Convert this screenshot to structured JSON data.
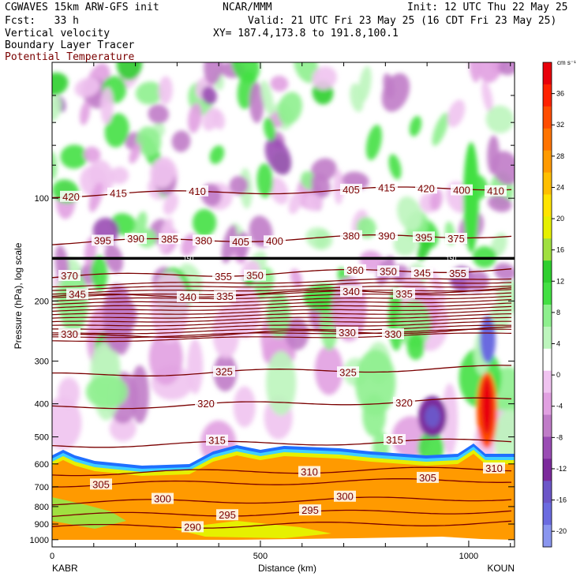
{
  "header": {
    "model": "CGWAVES 15km ARW-GFS init",
    "org": "NCAR/MMM",
    "init": "Init: 12 UTC Thu 22 May 25",
    "fcst": "Fcst:   33 h",
    "valid": "Valid: 21 UTC Fri 23 May 25 (16 CDT Fri 23 May 25)",
    "field1": "Vertical velocity",
    "xy": "XY= 187.4,173.8 to 191.8,100.1",
    "field2": "Boundary Layer Tracer",
    "field3": "Potential Temperature"
  },
  "colors": {
    "theta_line": "#7a0000",
    "theta_label": "#7a0000",
    "tropopause": "#000000"
  },
  "chart_data": {
    "type": "heatmap",
    "xlabel": "Distance (km)",
    "ylabel": "Pressure (hPa), log scale",
    "xlim": [
      0,
      1110
    ],
    "xticks": [
      "0",
      "500",
      "1000"
    ],
    "left_station": "KABR",
    "right_station": "KOUN",
    "y_scale": "log",
    "yticks": [
      "100",
      "200",
      "300",
      "400",
      "500",
      "600",
      "700",
      "800",
      "900",
      "1000"
    ],
    "colorbar": {
      "units": "cm s⁻¹",
      "ticks": [
        "36",
        "32",
        "28",
        "24",
        "20",
        "16",
        "12",
        "8",
        "4",
        "0",
        "-4",
        "-8",
        "-12",
        "-16",
        "-20"
      ],
      "colors": [
        "#e8000a",
        "#ff2200",
        "#ff4d00",
        "#ff7400",
        "#ff9a00",
        "#ffbf00",
        "#ffe400",
        "#e6f000",
        "#a0e040",
        "#2fcf2f",
        "#43e043",
        "#8ef08e",
        "#bdf5bd",
        "#ffffff",
        "#f0c3f0",
        "#e1a0e1",
        "#c07cc8",
        "#9a4cb4",
        "#7c2a9c",
        "#6c56c8",
        "#6b6be0",
        "#8a96ef"
      ]
    },
    "tropopause_label": "150",
    "theta_contours": [
      {
        "label": "420",
        "p": 98,
        "labels": [
          [
            "420",
            90
          ],
          [
            "415",
            150
          ],
          [
            "410",
            250
          ],
          [
            "405",
            445
          ],
          [
            "415",
            490
          ],
          [
            "420",
            540
          ],
          [
            "400",
            585
          ],
          [
            "410",
            628
          ]
        ]
      },
      {
        "label": "395",
        "p": 135,
        "labels": [
          [
            "395",
            130
          ],
          [
            "390",
            172
          ],
          [
            "385",
            215
          ],
          [
            "380",
            258
          ],
          [
            "405",
            305
          ],
          [
            "400",
            348
          ],
          [
            "380",
            445
          ],
          [
            "390",
            490
          ],
          [
            "395",
            537
          ],
          [
            "375",
            578
          ]
        ]
      },
      {
        "label": "370",
        "p": 170,
        "labels": [
          [
            "370",
            88
          ],
          [
            "355",
            283
          ],
          [
            "350",
            323
          ],
          [
            "360",
            450
          ],
          [
            "350",
            492
          ],
          [
            "345",
            535
          ],
          [
            "355",
            580
          ]
        ]
      },
      {
        "label": "345",
        "p": 195,
        "labels": [
          [
            "345",
            98
          ],
          [
            "340",
            238
          ],
          [
            "335",
            285
          ],
          [
            "340",
            445
          ],
          [
            "335",
            512
          ]
        ]
      },
      {
        "label": "330",
        "p": 255,
        "labels": [
          [
            "330",
            88
          ],
          [
            "330",
            440
          ],
          [
            "330",
            498
          ]
        ]
      },
      {
        "label": "325",
        "p": 330,
        "labels": [
          [
            "325",
            284
          ],
          [
            "325",
            441
          ]
        ]
      },
      {
        "label": "320",
        "p": 410,
        "labels": [
          [
            "320",
            261
          ],
          [
            "320",
            512
          ]
        ]
      },
      {
        "label": "315",
        "p": 530,
        "labels": [
          [
            "315",
            275
          ],
          [
            "315",
            500
          ]
        ]
      },
      {
        "label": "310",
        "p": 640,
        "labels": [
          [
            "310",
            392
          ],
          [
            "310",
            626
          ]
        ]
      },
      {
        "label": "305",
        "p": 690,
        "labels": [
          [
            "305",
            128
          ],
          [
            "305",
            542
          ]
        ]
      },
      {
        "label": "300",
        "p": 780,
        "labels": [
          [
            "300",
            206
          ],
          [
            "300",
            437
          ]
        ]
      },
      {
        "label": "295",
        "p": 850,
        "labels": [
          [
            "295",
            288
          ],
          [
            "295",
            393
          ]
        ]
      },
      {
        "label": "290",
        "p": 920,
        "labels": [
          [
            "290",
            244
          ]
        ]
      }
    ]
  }
}
